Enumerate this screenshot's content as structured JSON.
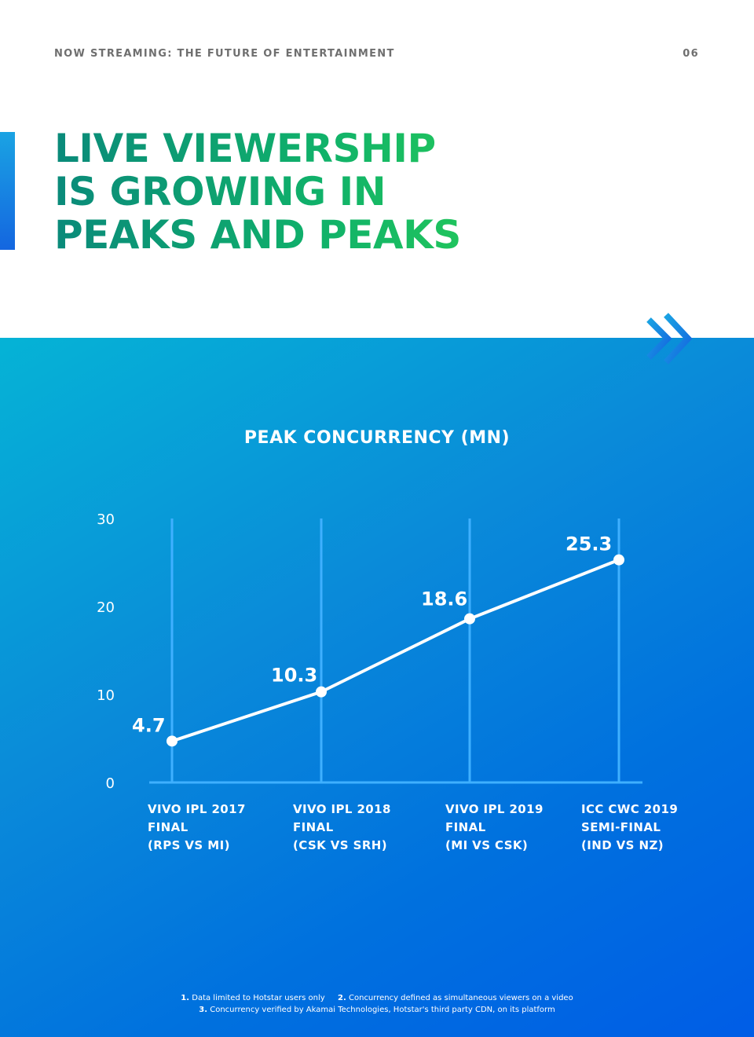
{
  "header": {
    "title": "NOW STREAMING: THE FUTURE OF ENTERTAINMENT",
    "page_number": "06"
  },
  "headline": {
    "lines": [
      "LIVE VIEWERSHIP",
      "IS GROWING IN",
      "PEAKS AND PEAKS"
    ]
  },
  "colors": {
    "headline_green": "#0fae6b",
    "panel_top": "#05b3d6",
    "panel_bottom": "#005de6",
    "line": "#ffffff",
    "gridline": "#3fb0ff"
  },
  "icons": {
    "chevrons": "double-chevron-right-icon"
  },
  "chart_data": {
    "type": "line",
    "title": "PEAK CONCURRENCY (MN)",
    "categories": [
      [
        "VIVO IPL 2017",
        "FINAL",
        "(RPS VS MI)"
      ],
      [
        "VIVO IPL 2018",
        "FINAL",
        "(CSK VS SRH)"
      ],
      [
        "VIVO IPL 2019",
        "FINAL",
        "(MI VS CSK)"
      ],
      [
        "ICC CWC 2019",
        "SEMI-FINAL",
        "(IND VS NZ)"
      ]
    ],
    "values": [
      4.7,
      10.3,
      18.6,
      25.3
    ],
    "value_labels": [
      "4.7",
      "10.3",
      "18.6",
      "25.3"
    ],
    "ylim": [
      0,
      30
    ],
    "yticks": [
      0,
      10,
      20,
      30
    ],
    "grid": "vertical lines at each category"
  },
  "footnotes": [
    {
      "num": "1.",
      "text": "Data limited to Hotstar users only"
    },
    {
      "num": "2.",
      "text": "Concurrency defined as simultaneous viewers on a video"
    },
    {
      "num": "3.",
      "text": "Concurrency verified by Akamai Technologies, Hotstar's third party CDN, on its platform"
    }
  ]
}
